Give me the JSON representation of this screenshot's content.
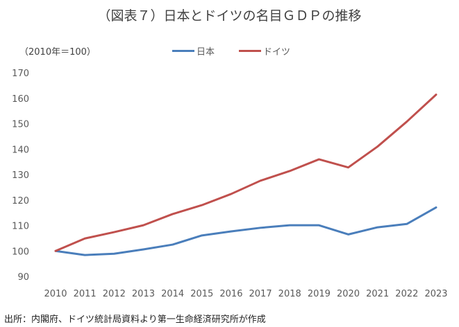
{
  "title": "（図表７）日本とドイツの名目ＧＤＰの推移",
  "source": "出所：内閣府、ドイツ統計局資料より第一生命経済研究所が作成",
  "chart_data": {
    "type": "line",
    "title": "（図表７）日本とドイツの名目ＧＤＰの推移",
    "ylabel": "（2010年＝100）",
    "xlabel": "",
    "x": [
      "2010",
      "2011",
      "2012",
      "2013",
      "2014",
      "2015",
      "2016",
      "2017",
      "2018",
      "2019",
      "2020",
      "2021",
      "2022",
      "2023"
    ],
    "ylim": [
      90,
      170
    ],
    "yticks": [
      "90",
      "100",
      "110",
      "120",
      "130",
      "140",
      "150",
      "160",
      "170"
    ],
    "grid": false,
    "legend": "top-center",
    "series": [
      {
        "name": "日本",
        "color": "#4a7ebb",
        "values": [
          100,
          98.4,
          98.9,
          100.6,
          102.5,
          106.1,
          107.7,
          109.1,
          110.1,
          110.1,
          106.5,
          109.3,
          110.6,
          117.1
        ]
      },
      {
        "name": "ドイツ",
        "color": "#c0504d",
        "values": [
          100,
          104.9,
          107.4,
          110.1,
          114.5,
          118,
          122.4,
          127.6,
          131.4,
          136,
          132.8,
          141,
          150.8,
          161.4
        ]
      }
    ]
  }
}
